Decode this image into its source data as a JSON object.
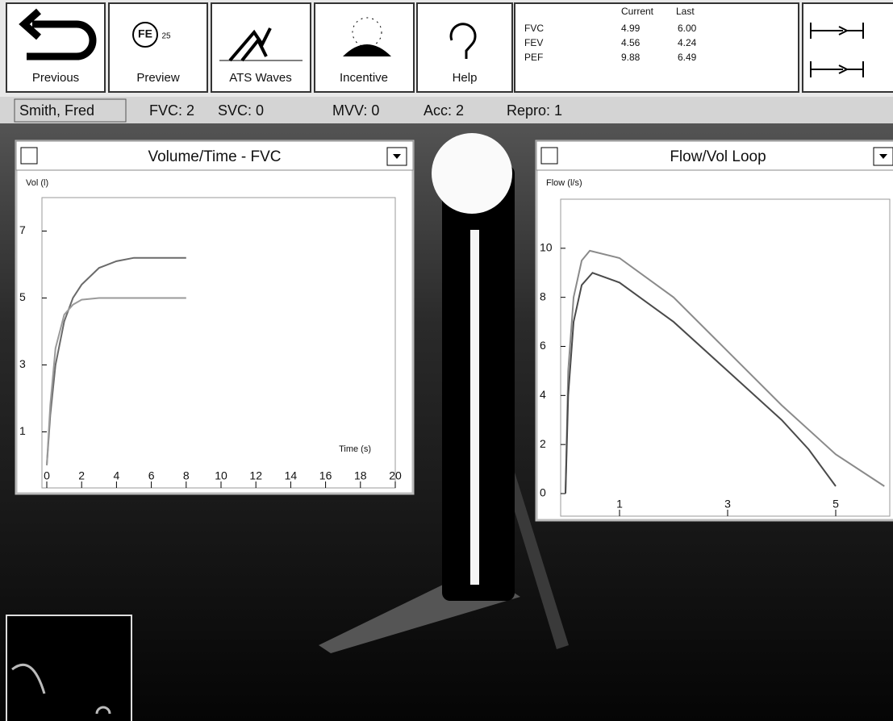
{
  "toolbar": {
    "buttons": [
      {
        "label": "Previous"
      },
      {
        "label": "Preview",
        "icon_text": [
          "FE",
          "25"
        ]
      },
      {
        "label": "ATS Waves"
      },
      {
        "label": "Incentive"
      },
      {
        "label": "Help"
      }
    ]
  },
  "results": {
    "headers": [
      "Current",
      "Last"
    ],
    "rows": [
      [
        "FVC",
        "4.99",
        "6.00"
      ],
      [
        "FEV",
        "4.56",
        "4.24"
      ],
      [
        "PEF",
        "9.88",
        "6.49"
      ]
    ]
  },
  "status": {
    "patient": "Smith, Fred",
    "items": [
      "FVC: 2",
      "SVC: 0",
      "MVV: 0",
      "Acc: 2",
      "Repro: 1"
    ]
  },
  "chart_data": [
    {
      "type": "line",
      "title": "Volume/Time - FVC",
      "ylabel": "Vol (l)",
      "xlabel": "Time (s)",
      "xlim": [
        0,
        20
      ],
      "ylim": [
        0,
        8
      ],
      "xticks": [
        0,
        2,
        4,
        6,
        8,
        10,
        12,
        14,
        16,
        18,
        20
      ],
      "yticks": [
        1,
        3,
        5,
        7
      ],
      "series": [
        {
          "color": "#6a6a6a",
          "x": [
            0,
            0.2,
            0.5,
            1,
            1.5,
            2,
            3,
            4,
            5,
            6,
            8
          ],
          "values": [
            0,
            1.5,
            3,
            4.3,
            5,
            5.4,
            5.9,
            6.1,
            6.2,
            6.2,
            6.2
          ]
        },
        {
          "color": "#9a9a9a",
          "x": [
            0,
            0.2,
            0.5,
            1,
            1.5,
            2,
            3,
            4,
            6,
            8
          ],
          "values": [
            0,
            1.8,
            3.5,
            4.5,
            4.8,
            4.95,
            5,
            5,
            5,
            5
          ]
        }
      ]
    },
    {
      "type": "line",
      "title": "Flow/Vol Loop",
      "ylabel": "Flow (l/s)",
      "xlim": [
        0,
        6
      ],
      "ylim": [
        0,
        12
      ],
      "xticks": [
        1,
        3,
        5
      ],
      "yticks": [
        0,
        2,
        4,
        6,
        8,
        10
      ],
      "series": [
        {
          "color": "#8a8a8a",
          "x": [
            0,
            0.05,
            0.15,
            0.3,
            0.45,
            1,
            2,
            3,
            4,
            5,
            5.9
          ],
          "values": [
            0,
            5,
            8,
            9.5,
            9.9,
            9.6,
            8,
            5.8,
            3.6,
            1.6,
            0.3
          ]
        },
        {
          "color": "#4a4a4a",
          "x": [
            0,
            0.05,
            0.15,
            0.3,
            0.5,
            1,
            2,
            3,
            4,
            4.5,
            5
          ],
          "values": [
            0,
            4,
            7,
            8.5,
            9,
            8.6,
            7,
            5,
            3,
            1.8,
            0.3
          ]
        }
      ]
    }
  ]
}
